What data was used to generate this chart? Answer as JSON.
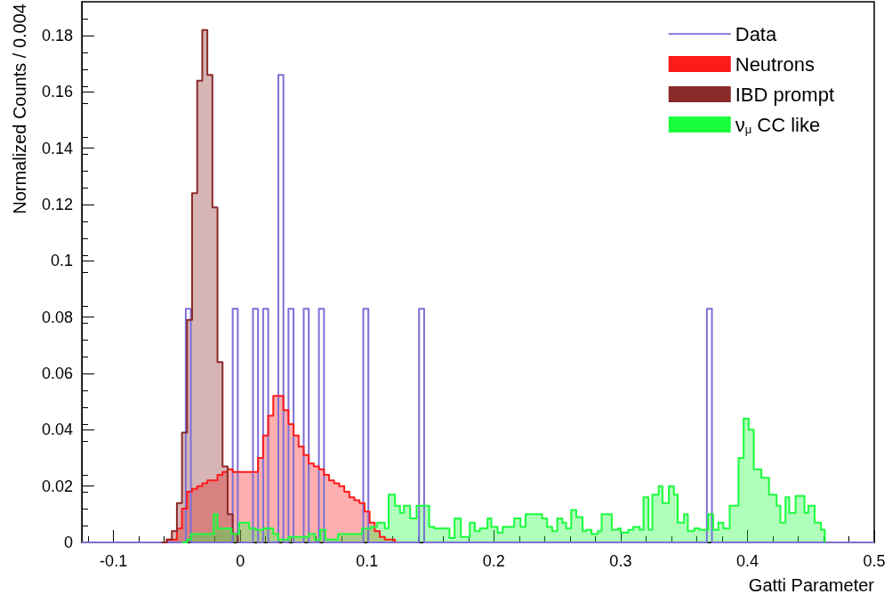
{
  "chart_data": {
    "type": "step",
    "xlabel": "Gatti Parameter",
    "ylabel": "Normalized Counts / 0.004",
    "xlim": [
      -0.125,
      0.5
    ],
    "xticks": [
      -0.1,
      0,
      0.1,
      0.2,
      0.3,
      0.4,
      0.5
    ],
    "ylim": [
      0,
      0.192
    ],
    "yticks": [
      0,
      0.02,
      0.04,
      0.06,
      0.08,
      0.1,
      0.12,
      0.14,
      0.16,
      0.18
    ],
    "legend": "top right",
    "grid": false,
    "series": [
      {
        "name": "Data",
        "type": "step",
        "color": "#7b6fd6",
        "x": [
          -0.125,
          -0.043,
          -0.039,
          -0.006,
          -0.002,
          0.01,
          0.014,
          0.018,
          0.022,
          0.03,
          0.034,
          0.038,
          0.042,
          0.05,
          0.054,
          0.062,
          0.066,
          0.097,
          0.101,
          0.141,
          0.145,
          0.368,
          0.372,
          0.5
        ],
        "values": [
          0,
          0.083,
          0,
          0.083,
          0,
          0.083,
          0,
          0.083,
          0,
          0.166,
          0,
          0.083,
          0,
          0.083,
          0,
          0.083,
          0,
          0.083,
          0,
          0.083,
          0,
          0.083,
          0,
          0
        ]
      },
      {
        "name": "Neutrons",
        "type": "area",
        "color": "#ff1a1a",
        "x": [
          -0.062,
          -0.058,
          -0.054,
          -0.05,
          -0.046,
          -0.042,
          -0.038,
          -0.034,
          -0.03,
          -0.026,
          -0.022,
          -0.018,
          -0.014,
          -0.01,
          -0.006,
          -0.002,
          0.002,
          0.006,
          0.01,
          0.014,
          0.018,
          0.022,
          0.026,
          0.03,
          0.034,
          0.038,
          0.042,
          0.046,
          0.05,
          0.054,
          0.058,
          0.062,
          0.066,
          0.07,
          0.074,
          0.078,
          0.082,
          0.086,
          0.09,
          0.094,
          0.098,
          0.102,
          0.106,
          0.11,
          0.114,
          0.118,
          0.122
        ],
        "values": [
          0,
          0.001,
          0.001,
          0.005,
          0.012,
          0.018,
          0.019,
          0.02,
          0.021,
          0.022,
          0.022,
          0.024,
          0.025,
          0.026,
          0.025,
          0.025,
          0.025,
          0.025,
          0.025,
          0.03,
          0.038,
          0.045,
          0.052,
          0.052,
          0.047,
          0.042,
          0.038,
          0.034,
          0.031,
          0.028,
          0.027,
          0.026,
          0.024,
          0.022,
          0.021,
          0.02,
          0.018,
          0.016,
          0.015,
          0.014,
          0.011,
          0.007,
          0.004,
          0.002,
          0.001,
          0.001,
          0
        ]
      },
      {
        "name": "IBD prompt",
        "type": "area",
        "color": "#8b2a2a",
        "x": [
          -0.062,
          -0.058,
          -0.054,
          -0.05,
          -0.046,
          -0.042,
          -0.038,
          -0.034,
          -0.03,
          -0.026,
          -0.022,
          -0.018,
          -0.014,
          -0.01,
          -0.006,
          -0.002
        ],
        "values": [
          0,
          0.001,
          0.004,
          0.014,
          0.039,
          0.079,
          0.124,
          0.164,
          0.182,
          0.166,
          0.119,
          0.064,
          0.027,
          0.01,
          0.003,
          0
        ]
      },
      {
        "name": "ν$_{μ}$ CC like",
        "type": "area",
        "color": "#1aff3c",
        "x": [
          -0.046,
          -0.042,
          -0.039,
          -0.021,
          -0.018,
          -0.007,
          -0.001,
          0.007,
          0.012,
          0.018,
          0.026,
          0.03,
          0.038,
          0.054,
          0.059,
          0.063,
          0.067,
          0.077,
          0.096,
          0.103,
          0.108,
          0.114,
          0.117,
          0.122,
          0.126,
          0.129,
          0.134,
          0.139,
          0.149,
          0.153,
          0.165,
          0.169,
          0.174,
          0.181,
          0.185,
          0.189,
          0.195,
          0.198,
          0.203,
          0.207,
          0.216,
          0.221,
          0.225,
          0.238,
          0.242,
          0.246,
          0.25,
          0.254,
          0.257,
          0.261,
          0.265,
          0.27,
          0.273,
          0.277,
          0.282,
          0.285,
          0.293,
          0.298,
          0.3,
          0.306,
          0.31,
          0.315,
          0.318,
          0.322,
          0.325,
          0.33,
          0.333,
          0.338,
          0.342,
          0.345,
          0.35,
          0.353,
          0.358,
          0.362,
          0.369,
          0.373,
          0.377,
          0.381,
          0.386,
          0.393,
          0.397,
          0.401,
          0.405,
          0.411,
          0.417,
          0.423,
          0.426,
          0.43,
          0.433,
          0.438,
          0.445,
          0.448,
          0.453,
          0.458,
          0.461
        ],
        "values": [
          0,
          0.001,
          0.003,
          0.01,
          0.005,
          0.003,
          0.007,
          0.005,
          0.0045,
          0.005,
          0.003,
          0.001,
          0.002,
          0.003,
          0.001,
          0.0045,
          0.001,
          0.003,
          0.005,
          0.0055,
          0.007,
          0.005,
          0.017,
          0.013,
          0.0105,
          0.013,
          0.0085,
          0.013,
          0.0055,
          0.005,
          0.0016,
          0.0085,
          0.002,
          0.007,
          0.004,
          0.005,
          0.0085,
          0.0055,
          0.0035,
          0.0055,
          0.0085,
          0.0055,
          0.01,
          0.0085,
          0.0055,
          0.004,
          0.0085,
          0.007,
          0.005,
          0.0115,
          0.009,
          0.004,
          0.0045,
          0.003,
          0.004,
          0.01,
          0.0045,
          0.005,
          0.0035,
          0.0045,
          0.0055,
          0.0045,
          0.016,
          0.0045,
          0.017,
          0.02,
          0.014,
          0.02,
          0.017,
          0.007,
          0.01,
          0.004,
          0.005,
          0.0045,
          0.01,
          0.0045,
          0.007,
          0.005,
          0.013,
          0.03,
          0.044,
          0.04,
          0.026,
          0.023,
          0.017,
          0.013,
          0.007,
          0.016,
          0.0105,
          0.0165,
          0.0105,
          0.013,
          0.007,
          0.0045,
          0
        ]
      }
    ]
  }
}
